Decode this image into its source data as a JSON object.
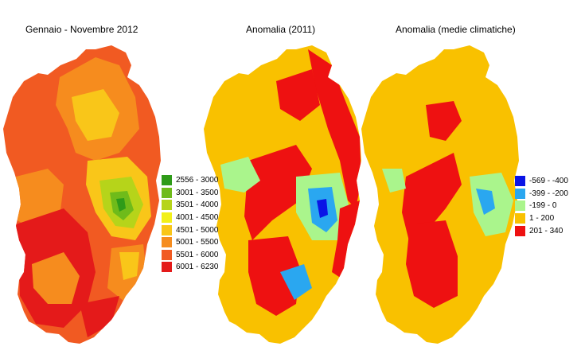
{
  "titles": {
    "map1": "Gennaio - Novembre 2012",
    "map2": "Anomalia (2011)",
    "map3": "Anomalia (medie climatiche)"
  },
  "legend_totals": {
    "items": [
      {
        "label": "2556 - 3000",
        "color": "#2e9b19"
      },
      {
        "label": "3001 - 3500",
        "color": "#6fbb1a"
      },
      {
        "label": "3501 - 4000",
        "color": "#b6d41a"
      },
      {
        "label": "4001 - 4500",
        "color": "#f2f01a"
      },
      {
        "label": "4501 - 5000",
        "color": "#f9c619"
      },
      {
        "label": "5001 - 5500",
        "color": "#f68c1e"
      },
      {
        "label": "5501 - 6000",
        "color": "#f15a22"
      },
      {
        "label": "6001 - 6230",
        "color": "#e41a1a"
      }
    ]
  },
  "legend_anomaly": {
    "items": [
      {
        "label": "-569 - -400",
        "color": "#0a14e6"
      },
      {
        "label": "-399 - -200",
        "color": "#2aa7f0"
      },
      {
        "label": "-199 - 0",
        "color": "#aaf58c"
      },
      {
        "label": "1 - 200",
        "color": "#f9c100"
      },
      {
        "label": "201 - 340",
        "color": "#ee1111"
      }
    ]
  },
  "map_colors": {
    "totals_base": "#f15a22",
    "totals_high": "#e41a1a",
    "totals_mid": "#f68c1e",
    "totals_low": "#f9c619",
    "totals_lower": "#b6d41a",
    "totals_lowest": "#6fbb1a",
    "totals_min": "#2e9b19",
    "anom_base": "#f9c100",
    "anom_pos": "#ee1111",
    "anom_neg": "#aaf58c",
    "anom_more_neg": "#2aa7f0",
    "anom_most_neg": "#0a14e6"
  }
}
